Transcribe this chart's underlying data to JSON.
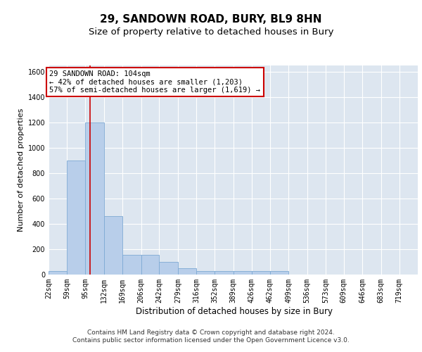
{
  "title": "29, SANDOWN ROAD, BURY, BL9 8HN",
  "subtitle": "Size of property relative to detached houses in Bury",
  "xlabel": "Distribution of detached houses by size in Bury",
  "ylabel": "Number of detached properties",
  "bin_edges": [
    22,
    59,
    95,
    132,
    169,
    206,
    242,
    279,
    316,
    352,
    389,
    426,
    462,
    499,
    536,
    573,
    609,
    646,
    683,
    719,
    756
  ],
  "bin_heights": [
    30,
    900,
    1200,
    460,
    158,
    158,
    100,
    50,
    30,
    30,
    25,
    30,
    30,
    0,
    0,
    0,
    0,
    0,
    0,
    0
  ],
  "bar_color": "#b8ceea",
  "bar_edge_color": "#7eaad4",
  "property_size": 104,
  "red_line_color": "#cc0000",
  "annotation_text": "29 SANDOWN ROAD: 104sqm\n← 42% of detached houses are smaller (1,203)\n57% of semi-detached houses are larger (1,619) →",
  "annotation_box_color": "white",
  "annotation_box_edge": "#cc0000",
  "ylim": [
    0,
    1650
  ],
  "yticks": [
    0,
    200,
    400,
    600,
    800,
    1000,
    1200,
    1400,
    1600
  ],
  "background_color": "#dde6f0",
  "footer_line1": "Contains HM Land Registry data © Crown copyright and database right 2024.",
  "footer_line2": "Contains public sector information licensed under the Open Government Licence v3.0.",
  "title_fontsize": 11,
  "subtitle_fontsize": 9.5,
  "xlabel_fontsize": 8.5,
  "ylabel_fontsize": 8,
  "tick_label_fontsize": 7,
  "annotation_fontsize": 7.5,
  "footer_fontsize": 6.5
}
